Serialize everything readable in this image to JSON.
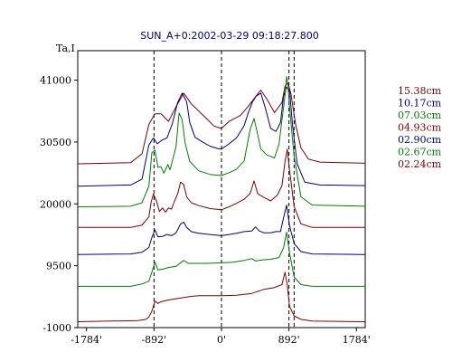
{
  "chart_data": {
    "type": "line",
    "title": "SUN_A+0:2002-03-29 09:18:27.800",
    "ylabel": "Ta,I",
    "xlabel": "",
    "xlim": [
      -1900,
      1900
    ],
    "ylim": [
      -1000,
      46000
    ],
    "x_ticks": [
      {
        "value": -1784,
        "label": "-1784'"
      },
      {
        "value": -892,
        "label": "-892'"
      },
      {
        "value": 0,
        "label": "0'"
      },
      {
        "value": 892,
        "label": "892'"
      },
      {
        "value": 1784,
        "label": "1784'"
      }
    ],
    "y_ticks": [
      {
        "value": 41000,
        "label": "41000"
      },
      {
        "value": 30500,
        "label": "30500"
      },
      {
        "value": 20000,
        "label": "20000"
      },
      {
        "value": 9500,
        "label": "9500"
      },
      {
        "value": -1000,
        "label": "-1000"
      }
    ],
    "vlines": [
      -892,
      0,
      892,
      960
    ],
    "grid": false,
    "legend_position": "right",
    "series": [
      {
        "name": "15.38cm",
        "color": "#7f0000",
        "points": [
          [
            -1900,
            26800
          ],
          [
            -1200,
            27000
          ],
          [
            -1050,
            28500
          ],
          [
            -960,
            33500
          ],
          [
            -880,
            35300
          ],
          [
            -800,
            35300
          ],
          [
            -700,
            34000
          ],
          [
            -600,
            36500
          ],
          [
            -500,
            38800
          ],
          [
            -400,
            37000
          ],
          [
            -200,
            34500
          ],
          [
            -100,
            33200
          ],
          [
            0,
            32800
          ],
          [
            100,
            34000
          ],
          [
            250,
            35000
          ],
          [
            350,
            36500
          ],
          [
            450,
            38200
          ],
          [
            520,
            39300
          ],
          [
            600,
            37800
          ],
          [
            700,
            35500
          ],
          [
            800,
            37200
          ],
          [
            840,
            40000
          ],
          [
            880,
            40600
          ],
          [
            920,
            38500
          ],
          [
            980,
            33500
          ],
          [
            1050,
            29500
          ],
          [
            1150,
            27600
          ],
          [
            1300,
            27100
          ],
          [
            1900,
            26900
          ]
        ]
      },
      {
        "name": "10.17cm",
        "color": "#00007f",
        "points": [
          [
            -1900,
            23000
          ],
          [
            -1200,
            23200
          ],
          [
            -1050,
            24200
          ],
          [
            -960,
            30000
          ],
          [
            -900,
            31200
          ],
          [
            -850,
            30200
          ],
          [
            -790,
            30800
          ],
          [
            -720,
            31200
          ],
          [
            -650,
            33600
          ],
          [
            -580,
            37200
          ],
          [
            -520,
            38800
          ],
          [
            -460,
            37300
          ],
          [
            -420,
            33800
          ],
          [
            -350,
            31300
          ],
          [
            -250,
            30500
          ],
          [
            -150,
            29800
          ],
          [
            -50,
            29400
          ],
          [
            0,
            29300
          ],
          [
            100,
            30200
          ],
          [
            200,
            31200
          ],
          [
            300,
            33300
          ],
          [
            350,
            35300
          ],
          [
            410,
            37300
          ],
          [
            460,
            38300
          ],
          [
            520,
            38800
          ],
          [
            580,
            36300
          ],
          [
            650,
            32800
          ],
          [
            720,
            32300
          ],
          [
            780,
            33800
          ],
          [
            820,
            38200
          ],
          [
            860,
            39800
          ],
          [
            900,
            39300
          ],
          [
            940,
            33200
          ],
          [
            1000,
            26800
          ],
          [
            1100,
            23700
          ],
          [
            1300,
            23200
          ],
          [
            1900,
            23100
          ]
        ]
      },
      {
        "name": "07.03cm",
        "color": "#007f00",
        "points": [
          [
            -1900,
            19500
          ],
          [
            -1200,
            19600
          ],
          [
            -1050,
            20200
          ],
          [
            -960,
            23000
          ],
          [
            -920,
            28700
          ],
          [
            -880,
            29100
          ],
          [
            -840,
            26200
          ],
          [
            -800,
            26300
          ],
          [
            -760,
            25200
          ],
          [
            -710,
            26700
          ],
          [
            -680,
            25800
          ],
          [
            -640,
            27700
          ],
          [
            -600,
            29800
          ],
          [
            -560,
            35400
          ],
          [
            -520,
            34300
          ],
          [
            -480,
            30300
          ],
          [
            -420,
            27200
          ],
          [
            -300,
            25600
          ],
          [
            -150,
            25000
          ],
          [
            0,
            24800
          ],
          [
            100,
            25300
          ],
          [
            200,
            25900
          ],
          [
            300,
            27300
          ],
          [
            380,
            32700
          ],
          [
            430,
            34500
          ],
          [
            470,
            32300
          ],
          [
            520,
            29300
          ],
          [
            600,
            28300
          ],
          [
            700,
            27800
          ],
          [
            760,
            30100
          ],
          [
            800,
            34200
          ],
          [
            840,
            38400
          ],
          [
            860,
            41600
          ],
          [
            880,
            40200
          ],
          [
            900,
            36400
          ],
          [
            960,
            28100
          ],
          [
            1050,
            21200
          ],
          [
            1200,
            19800
          ],
          [
            1900,
            19600
          ]
        ]
      },
      {
        "name": "04.93cm",
        "color": "#7f0000",
        "points": [
          [
            -1900,
            16000
          ],
          [
            -1200,
            16000
          ],
          [
            -1050,
            16400
          ],
          [
            -960,
            17800
          ],
          [
            -930,
            20300
          ],
          [
            -900,
            21700
          ],
          [
            -860,
            20500
          ],
          [
            -820,
            18700
          ],
          [
            -780,
            19300
          ],
          [
            -740,
            18600
          ],
          [
            -700,
            19300
          ],
          [
            -660,
            19100
          ],
          [
            -620,
            20500
          ],
          [
            -580,
            21700
          ],
          [
            -540,
            23700
          ],
          [
            -500,
            23300
          ],
          [
            -460,
            21200
          ],
          [
            -400,
            20200
          ],
          [
            -300,
            19700
          ],
          [
            -150,
            19200
          ],
          [
            0,
            19000
          ],
          [
            100,
            19500
          ],
          [
            200,
            20100
          ],
          [
            300,
            20800
          ],
          [
            380,
            21800
          ],
          [
            430,
            23900
          ],
          [
            480,
            21700
          ],
          [
            560,
            21100
          ],
          [
            650,
            20500
          ],
          [
            740,
            21500
          ],
          [
            800,
            23100
          ],
          [
            840,
            27200
          ],
          [
            870,
            29300
          ],
          [
            900,
            25700
          ],
          [
            960,
            19600
          ],
          [
            1050,
            16600
          ],
          [
            1200,
            16000
          ],
          [
            1900,
            16000
          ]
        ]
      },
      {
        "name": "02.90cm",
        "color": "#00007f",
        "points": [
          [
            -1900,
            11400
          ],
          [
            -1200,
            11500
          ],
          [
            -1050,
            11800
          ],
          [
            -960,
            12600
          ],
          [
            -920,
            14300
          ],
          [
            -880,
            15600
          ],
          [
            -840,
            14400
          ],
          [
            -780,
            14500
          ],
          [
            -720,
            14800
          ],
          [
            -660,
            14600
          ],
          [
            -600,
            15100
          ],
          [
            -540,
            16600
          ],
          [
            -500,
            16900
          ],
          [
            -460,
            16000
          ],
          [
            -400,
            15300
          ],
          [
            -300,
            15000
          ],
          [
            -150,
            14800
          ],
          [
            0,
            14600
          ],
          [
            100,
            14800
          ],
          [
            200,
            15000
          ],
          [
            300,
            15300
          ],
          [
            400,
            15400
          ],
          [
            450,
            16100
          ],
          [
            500,
            15400
          ],
          [
            560,
            15100
          ],
          [
            650,
            15100
          ],
          [
            720,
            15300
          ],
          [
            780,
            15300
          ],
          [
            820,
            17600
          ],
          [
            860,
            19800
          ],
          [
            900,
            16300
          ],
          [
            960,
            13300
          ],
          [
            1050,
            11900
          ],
          [
            1200,
            11500
          ],
          [
            1900,
            11400
          ]
        ]
      },
      {
        "name": "02.67cm",
        "color": "#007f00",
        "points": [
          [
            -1900,
            6000
          ],
          [
            -1200,
            6000
          ],
          [
            -1050,
            6400
          ],
          [
            -960,
            6900
          ],
          [
            -920,
            8400
          ],
          [
            -880,
            10100
          ],
          [
            -840,
            8800
          ],
          [
            -780,
            8900
          ],
          [
            -700,
            9200
          ],
          [
            -600,
            9400
          ],
          [
            -500,
            10400
          ],
          [
            -440,
            9900
          ],
          [
            -350,
            9900
          ],
          [
            -200,
            9900
          ],
          [
            0,
            10000
          ],
          [
            150,
            10100
          ],
          [
            300,
            10400
          ],
          [
            400,
            10700
          ],
          [
            450,
            10300
          ],
          [
            550,
            10500
          ],
          [
            650,
            10600
          ],
          [
            760,
            10900
          ],
          [
            820,
            12500
          ],
          [
            860,
            15200
          ],
          [
            900,
            11700
          ],
          [
            960,
            7600
          ],
          [
            1050,
            6300
          ],
          [
            1200,
            6000
          ],
          [
            1900,
            6000
          ]
        ]
      },
      {
        "name": "02.24cm",
        "color": "#7f0000",
        "points": [
          [
            -1900,
            0
          ],
          [
            -1100,
            200
          ],
          [
            -1000,
            400
          ],
          [
            -960,
            800
          ],
          [
            -920,
            1800
          ],
          [
            -880,
            3500
          ],
          [
            -840,
            3100
          ],
          [
            -800,
            3400
          ],
          [
            -700,
            3700
          ],
          [
            -600,
            3900
          ],
          [
            -500,
            4100
          ],
          [
            -400,
            4300
          ],
          [
            -300,
            4400
          ],
          [
            -100,
            4400
          ],
          [
            0,
            4400
          ],
          [
            200,
            4500
          ],
          [
            400,
            4800
          ],
          [
            560,
            5500
          ],
          [
            700,
            5800
          ],
          [
            800,
            6300
          ],
          [
            840,
            8400
          ],
          [
            870,
            6200
          ],
          [
            900,
            2600
          ],
          [
            960,
            1000
          ],
          [
            1050,
            400
          ],
          [
            1200,
            100
          ],
          [
            1900,
            0
          ]
        ]
      }
    ]
  }
}
